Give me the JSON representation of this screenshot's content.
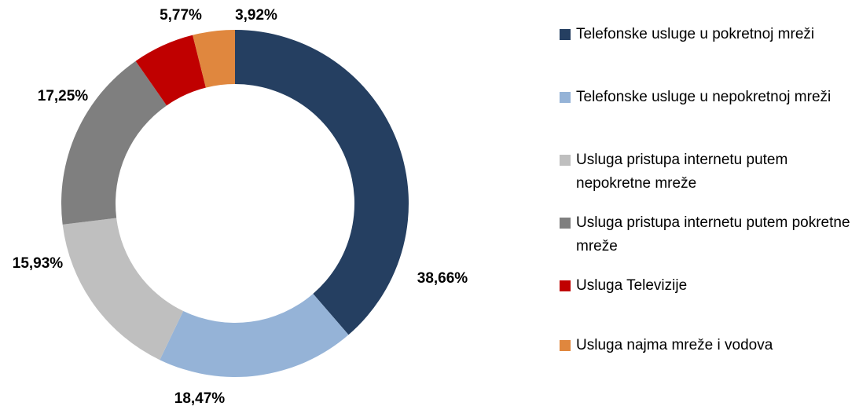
{
  "chart_data": {
    "type": "donut",
    "categories": [
      "Telefonske usluge u pokretnoj mreži",
      "Telefonske usluge u nepokretnoj mreži",
      "Usluga pristupa internetu putem nepokretne mreže",
      "Usluga pristupa internetu putem pokretne mreže",
      "Usluga Televizije",
      "Usluga najma mreže i vodova"
    ],
    "values": [
      38.66,
      18.47,
      15.93,
      17.25,
      5.77,
      3.92
    ],
    "value_labels": [
      "38,66%",
      "18,47%",
      "15,93%",
      "17,25%",
      "5,77%",
      "3,92%"
    ],
    "colors": [
      "#253f61",
      "#95b3d7",
      "#bfbfbf",
      "#7f7f7f",
      "#c00000",
      "#e0873e"
    ],
    "legend": "right"
  }
}
